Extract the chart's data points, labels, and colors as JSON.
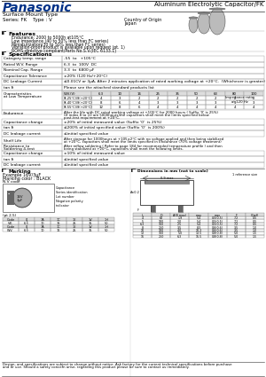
{
  "title_company": "Panasonic",
  "title_product": "Aluminum Electrolytic Capacitor/FK",
  "subtitle": "Surface Mount Type",
  "series_line": "Series: FK    Type : V",
  "country_label": "Country of Origin",
  "country_val": "Japan",
  "features_label": "Features",
  "features": [
    "Endurance: 2000 to 5000h at105°C",
    "Low impedance (40 to 50% less than FC series)",
    "Miniaturization(30 to 50% less than FC series)",
    "Vibration-proof product is available upon request (pt. 1)",
    "ROHS-directive compliant/Parts No.S.V.(IEC 6133.1)"
  ],
  "specs_label": "Specifications",
  "spec_rows": [
    [
      "Category temp. range",
      "-55  to   +105°C"
    ],
    [
      "Rated W.V. Range",
      "6.3  to  100V  DC"
    ],
    [
      "Nominal Cap. Range",
      "3.3  to  6800 μF"
    ],
    [
      "Capacitance Tolerance",
      "±20% (120 Hz/+20°C)"
    ],
    [
      "DC Leakage Current",
      "≤0.01CV or 3μA, After 2 minutes application of rated working voltage at +20°C.  (Whichever is greater)"
    ],
    [
      "tan δ",
      "Please see the attached standard products list"
    ]
  ],
  "low_temp_headers": [
    "W.V.(V)",
    "6.3",
    "10",
    "16",
    "25",
    "35",
    "50",
    "63",
    "80",
    "100"
  ],
  "low_temp_row_labels": [
    "δ(-25°C)/δ(+20°C)",
    "δ(-40°C)/δ(+20°C)",
    "δ(-55°C)/δ(+20°C)"
  ],
  "low_temp_rows": [
    [
      "4",
      "3",
      "2",
      "2",
      "2",
      "2",
      "2",
      "2",
      "2"
    ],
    [
      "8",
      "6",
      "4",
      "3",
      "3",
      "3",
      "3",
      "3",
      "3"
    ],
    [
      "12",
      "8",
      "6",
      "4",
      "4",
      "4",
      "4",
      "4",
      "4"
    ]
  ],
  "impedance_note": "Impedance ratio\nat 120 Hz",
  "endurance_label": "Endurance",
  "endurance_desc": [
    "After the life with DC rated working voltage at +105°C for 2000 hours ( Suffix '0' is 25%)",
    "Of index 8 to 10 are 5000hours)the capacitors shall meet the limits specified below",
    "post-test requirement at +20°C."
  ],
  "endurance_rows": [
    [
      "Capacitance change",
      "±20% of initial measured value (Suffix '0'  is 25%)"
    ],
    [
      "tan δ",
      "≤200% of initial specified value (Suffix '0'  is 200%)"
    ],
    [
      "DC leakage current",
      "≤initial specified value"
    ]
  ],
  "shelf_label": "Shelf Life",
  "shelf_desc": [
    "After storage for 1000hours at +105±2°C with no voltage applied and then being stabilized",
    "at +20°C, capacitors shall meet the limits specified in Endurance (70% voltage treatment)"
  ],
  "soldering_label": "Resistance to\nSoldering 4-test",
  "soldering_desc": [
    "After reflow soldering ( Refer to page 184 for recommended temperature profile ) and then",
    "being stabilized at +20°C, capacitors shall meet the following limits."
  ],
  "soldering_rows": [
    [
      "Capacitance change",
      "±10% of initial measured value"
    ],
    [
      "tan δ",
      "≤initial specified value"
    ],
    [
      "DC leakage current",
      "≤initial specified value"
    ]
  ],
  "marking_label": "Marking",
  "marking_example": "Example 16V/3μF",
  "marking_color": "Marking color : BLACK",
  "marking_nv": "N.V code",
  "dim_label": "Dimensions in mm (not to scale)",
  "footer_line1": "Design, and specifications are subject to change without notice. Ask factory for the current technical specifications before purchase",
  "footer_line2": "and or use. Should a safety concern arise, regarding this product please be sure to contact us immediately.",
  "bg": "#ffffff",
  "black": "#000000",
  "gray": "#aaaaaa",
  "lgray": "#dddddd",
  "blue": "#003087"
}
